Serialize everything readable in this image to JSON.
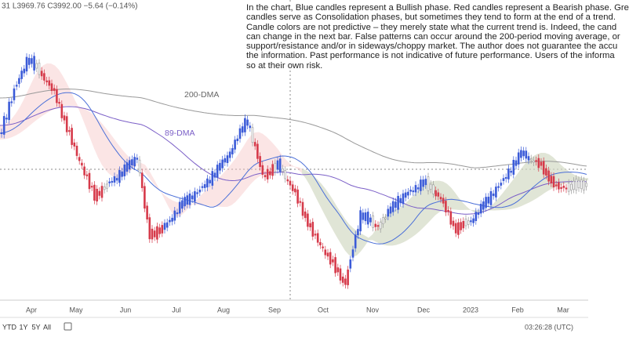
{
  "header": {
    "ohlc": "31 L3969.76 C3992.00 −5.64 (−0.14%)"
  },
  "disclaimer": {
    "lines": [
      "In the chart, Blue candles represent a Bullish phase. Red candles represent a Bearish phase. Gre",
      "candles serve as Consolidation phases, but sometimes they tend to form at the end of a trend.",
      "Candle colors are not predictive – they merely state what the current trend is. Indeed, the cand",
      "can change in the next bar. False patterns can occur around the 200-period moving average, or",
      "support/resistance and/or in sideways/choppy market. The author does not guarantee the accu",
      "the information. Past performance is not indicative of future performance. Users of the informa",
      "so at their own risk."
    ]
  },
  "labels": {
    "ma200": "200-DMA",
    "ma89": "89-DMA"
  },
  "x_axis": {
    "months": [
      "Apr",
      "May",
      "Jun",
      "Jul",
      "Aug",
      "Sep",
      "Oct",
      "Nov",
      "Dec",
      "2023",
      "Feb",
      "Mar"
    ]
  },
  "toolbar": {
    "ranges": [
      "YTD",
      "1Y",
      "5Y",
      "All"
    ],
    "clock": "03:26:28 (UTC)"
  }
}
